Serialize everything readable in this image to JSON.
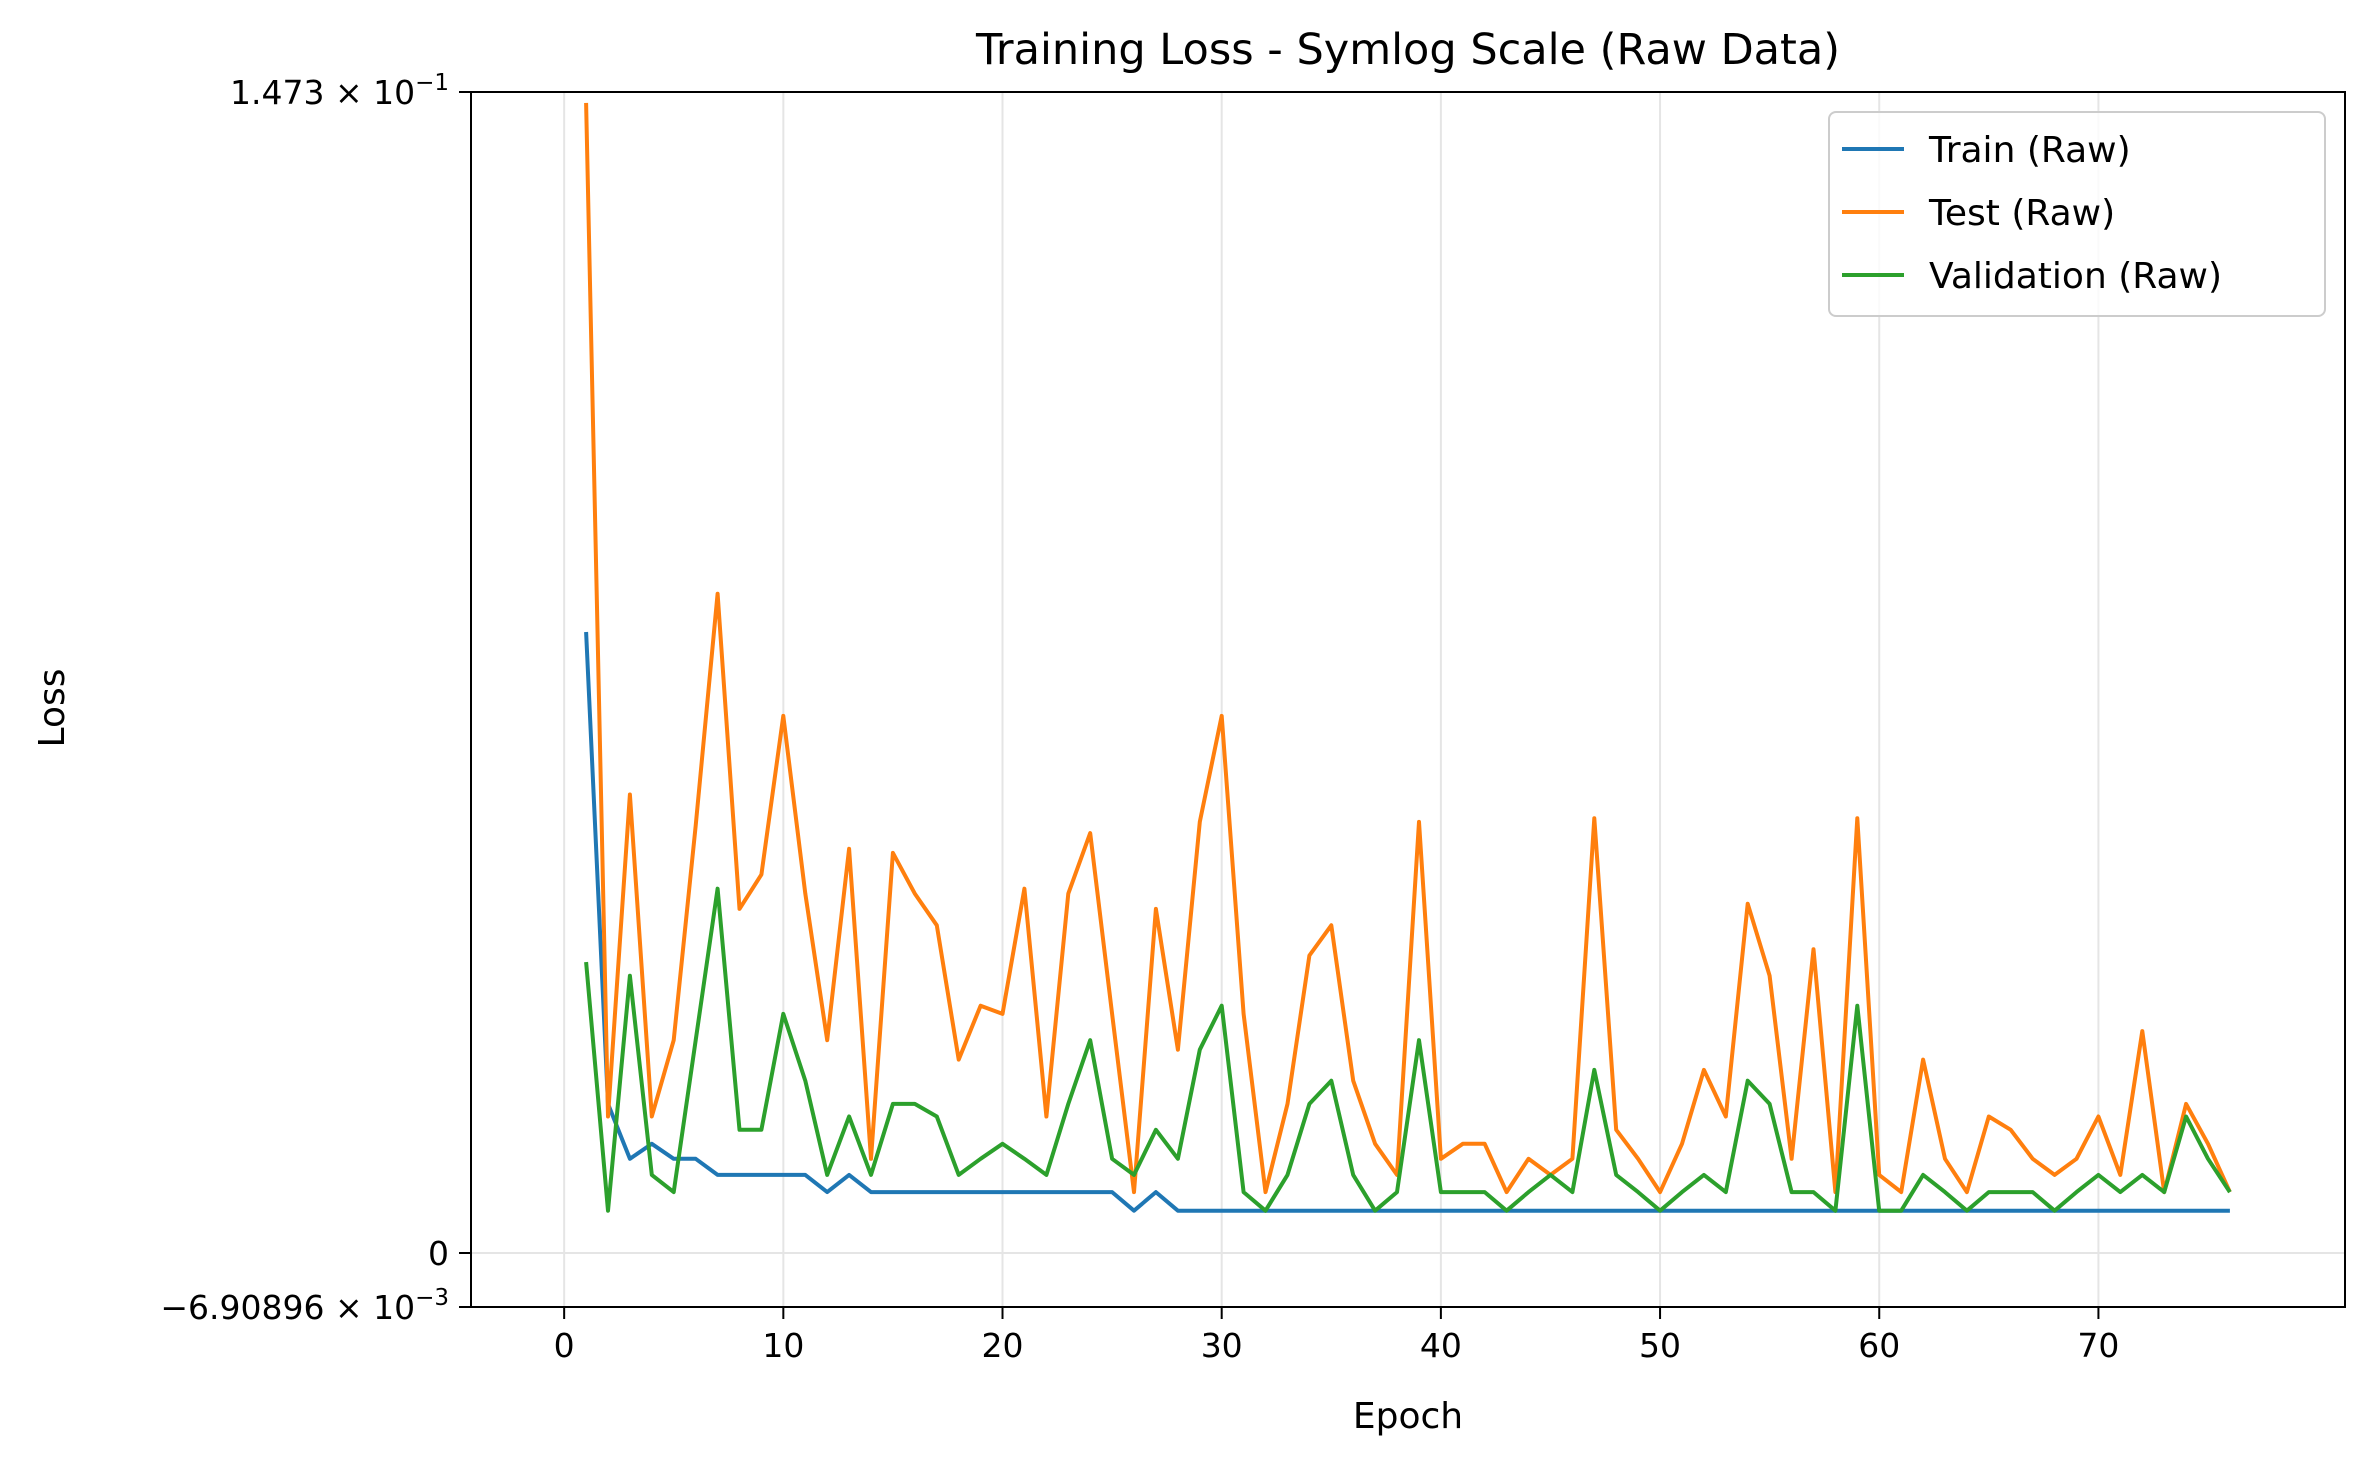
{
  "chart_data": {
    "type": "line",
    "title": "Training Loss - Symlog Scale (Raw Data)",
    "xlabel": "Epoch",
    "ylabel": "Loss",
    "xlim": [
      -4.25,
      81.25
    ],
    "ylim": [
      -0.00690896,
      0.1473
    ],
    "xticks": [
      0,
      10,
      20,
      30,
      40,
      50,
      60,
      70
    ],
    "yticks": [
      {
        "value": -0.00690896,
        "mantissa": "−6.90896",
        "exponent": "−3"
      },
      {
        "value": 0,
        "label": "0"
      },
      {
        "value": 0.1473,
        "mantissa": "1.473",
        "exponent": "−1"
      }
    ],
    "grid": "x",
    "legend": "top-right",
    "x": [
      1,
      2,
      3,
      4,
      5,
      6,
      7,
      8,
      9,
      10,
      11,
      12,
      13,
      14,
      15,
      16,
      17,
      18,
      19,
      20,
      21,
      22,
      23,
      24,
      25,
      26,
      27,
      28,
      29,
      30,
      31,
      32,
      33,
      34,
      35,
      36,
      37,
      38,
      39,
      40,
      41,
      42,
      43,
      44,
      45,
      46,
      47,
      48,
      49,
      50,
      51,
      52,
      53,
      54,
      55,
      56,
      57,
      58,
      59,
      60,
      61,
      62,
      63,
      64,
      65,
      66,
      67,
      68,
      69,
      70,
      71,
      72,
      73,
      74,
      75,
      76
    ],
    "series": [
      {
        "name": "Train (Raw)",
        "color": "#1f77b4",
        "values": [
          0.0135,
          0.0009,
          0.0005,
          0.0006,
          0.0005,
          0.0005,
          0.0004,
          0.0004,
          0.0004,
          0.0004,
          0.0004,
          0.0003,
          0.0004,
          0.0003,
          0.0003,
          0.0003,
          0.0003,
          0.0003,
          0.0003,
          0.0003,
          0.0003,
          0.0003,
          0.0003,
          0.0003,
          0.0003,
          0.0002,
          0.0003,
          0.0002,
          0.0002,
          0.0002,
          0.0002,
          0.0002,
          0.0002,
          0.0002,
          0.0002,
          0.0002,
          0.0002,
          0.0002,
          0.0002,
          0.0002,
          0.0002,
          0.0002,
          0.0002,
          0.0002,
          0.0002,
          0.0002,
          0.0002,
          0.0002,
          0.0002,
          0.0002,
          0.0002,
          0.0002,
          0.0002,
          0.0002,
          0.0002,
          0.0002,
          0.0002,
          0.0002,
          0.0002,
          0.0002,
          0.0002,
          0.0002,
          0.0002,
          0.0002,
          0.0002,
          0.0002,
          0.0002,
          0.0002,
          0.0002,
          0.0002,
          0.0002,
          0.0002,
          0.0002,
          0.0002,
          0.0002,
          0.0002
        ]
      },
      {
        "name": "Test (Raw)",
        "color": "#ff7f0e",
        "values": [
          0.1405,
          0.0008,
          0.0062,
          0.0008,
          0.0015,
          0.0053,
          0.0161,
          0.0034,
          0.0041,
          0.0091,
          0.0037,
          0.0015,
          0.0047,
          0.0005,
          0.0046,
          0.0037,
          0.0031,
          0.0013,
          0.0019,
          0.0018,
          0.0038,
          0.0008,
          0.0037,
          0.0051,
          0.0018,
          0.0003,
          0.0034,
          0.0014,
          0.0054,
          0.0091,
          0.0018,
          0.0003,
          0.0009,
          0.0026,
          0.0031,
          0.0011,
          0.0006,
          0.0004,
          0.0054,
          0.0005,
          0.0006,
          0.0006,
          0.0003,
          0.0005,
          0.0004,
          0.0005,
          0.0055,
          0.0007,
          0.0005,
          0.0003,
          0.0006,
          0.0012,
          0.0008,
          0.0035,
          0.0023,
          0.0005,
          0.0027,
          0.0003,
          0.0055,
          0.0004,
          0.0003,
          0.0013,
          0.0005,
          0.0003,
          0.0008,
          0.0007,
          0.0005,
          0.0004,
          0.0005,
          0.0008,
          0.0004,
          0.0016,
          0.0003,
          0.0009,
          0.0006,
          0.0003
        ]
      },
      {
        "name": "Validation (Raw)",
        "color": "#2ca02c",
        "values": [
          0.0025,
          0.0002,
          0.0023,
          0.0004,
          0.0003,
          0.0015,
          0.0038,
          0.0007,
          0.0007,
          0.0018,
          0.0011,
          0.0004,
          0.0008,
          0.0004,
          0.0009,
          0.0009,
          0.0008,
          0.0004,
          0.0005,
          0.0006,
          0.0005,
          0.0004,
          0.0009,
          0.0015,
          0.0005,
          0.0004,
          0.0007,
          0.0005,
          0.0014,
          0.0019,
          0.0003,
          0.0002,
          0.0004,
          0.0009,
          0.0011,
          0.0004,
          0.0002,
          0.0003,
          0.0015,
          0.0003,
          0.0003,
          0.0003,
          0.0002,
          0.0003,
          0.0004,
          0.0003,
          0.0012,
          0.0004,
          0.0003,
          0.0002,
          0.0003,
          0.0004,
          0.0003,
          0.0011,
          0.0009,
          0.0003,
          0.0003,
          0.0002,
          0.0019,
          0.0002,
          0.0002,
          0.0004,
          0.0003,
          0.0002,
          0.0003,
          0.0003,
          0.0003,
          0.0002,
          0.0003,
          0.0004,
          0.0003,
          0.0004,
          0.0003,
          0.0008,
          0.0005,
          0.0003
        ]
      }
    ]
  }
}
